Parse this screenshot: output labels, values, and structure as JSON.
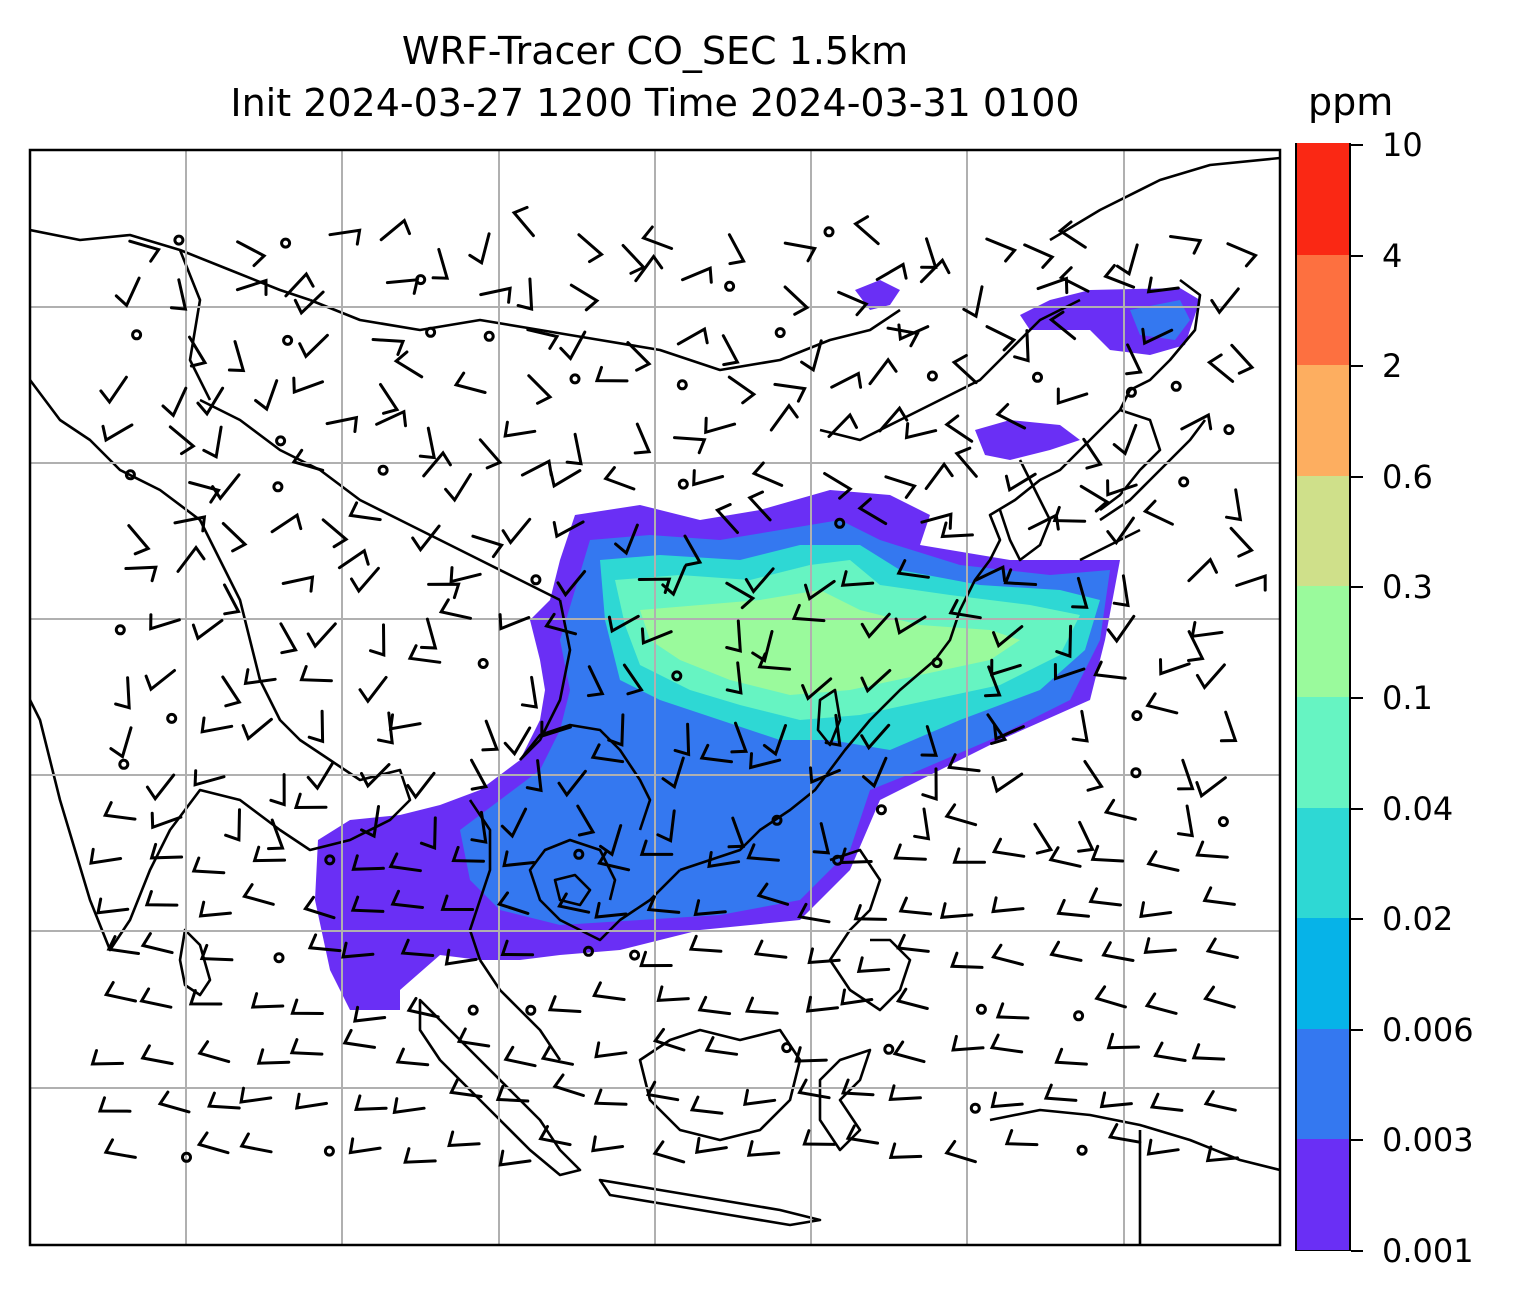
{
  "title_line1": "WRF-Tracer CO_SEC 1.5km",
  "title_line2": "Init 2024-03-27 1200 Time 2024-03-31 0100",
  "colorbar": {
    "unit": "ppm",
    "levels": [
      "0.001",
      "0.003",
      "0.006",
      "0.02",
      "0.04",
      "0.1",
      "0.3",
      "0.6",
      "2",
      "4",
      "10"
    ],
    "colors": [
      "#6a2ff5",
      "#3478f0",
      "#06b3e8",
      "#2ed8d4",
      "#66f4c2",
      "#9afa9c",
      "#cfe08a",
      "#fdae60",
      "#fd7040",
      "#fa2814"
    ]
  },
  "map": {
    "gridlines": true,
    "land_color": "#ffffff",
    "outline_color": "#000000",
    "gridline_color": "#b0b0b0"
  }
}
